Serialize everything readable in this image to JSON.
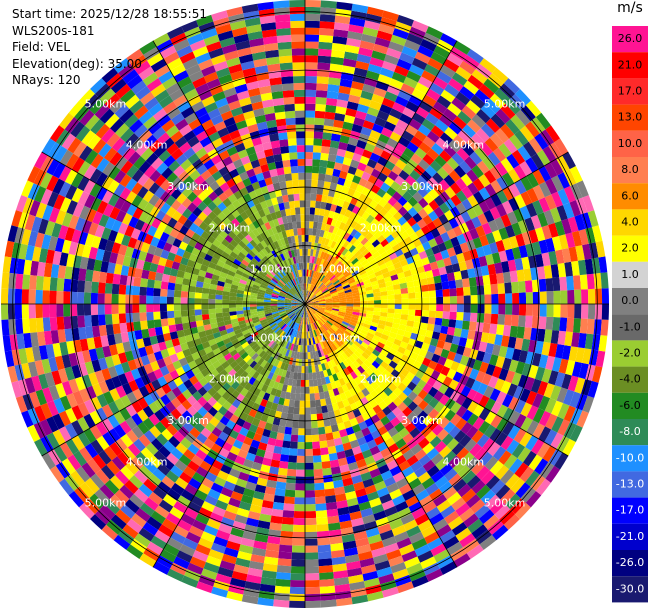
{
  "info": {
    "start_time": "Start time: 2025/12/28 18:55:51",
    "instrument": "WLS200s-181",
    "field": "Field: VEL",
    "elevation": "Elevation(deg): 35.00",
    "nrays": "NRays: 120"
  },
  "colorbar": {
    "unit": "m/s",
    "labels": [
      "26.0",
      "21.0",
      "17.0",
      "13.0",
      "10.0",
      "8.0",
      "6.0",
      "4.0",
      "2.0",
      "1.0",
      "0.0",
      "-1.0",
      "-2.0",
      "-4.0",
      "-6.0",
      "-8.0",
      "-10.0",
      "-13.0",
      "-17.0",
      "-21.0",
      "-26.0",
      "-30.0"
    ],
    "colors": [
      "#ff1493",
      "#ff0000",
      "#ff2a2a",
      "#ff4500",
      "#ff6347",
      "#ff7f50",
      "#ff8c00",
      "#ffd700",
      "#ffff00",
      "#d3d3d3",
      "#808080",
      "#696969",
      "#9acd32",
      "#6b8e23",
      "#228b22",
      "#2e8b57",
      "#1e90ff",
      "#4169e1",
      "#0000ff",
      "#0000cd",
      "#000080",
      "#191970"
    ]
  },
  "chart_data": {
    "type": "heatmap",
    "title": "",
    "field": "VEL",
    "units": "m/s",
    "nrays": 120,
    "elevation_deg": 35.0,
    "range_labels_km": [
      "1.00km",
      "2.00km",
      "3.00km",
      "4.00km",
      "5.00km"
    ],
    "range_rings_km": [
      1,
      2,
      3,
      4,
      5
    ],
    "max_range_km": 5.2,
    "value_range": [
      -30,
      26
    ],
    "pattern": "near-range: negative velocities (green/blue) toward west, positive (yellow/orange) toward east; beyond ~2 km noisy random values"
  },
  "palette": {
    "noise": [
      "#ff1493",
      "#ff0000",
      "#ff4500",
      "#ff7f50",
      "#ffd700",
      "#ffff00",
      "#808080",
      "#9acd32",
      "#228b22",
      "#2e8b57",
      "#1e90ff",
      "#4169e1",
      "#0000ff",
      "#000080",
      "#191970",
      "#ff6347",
      "#8b008b",
      "#ff69b4"
    ]
  }
}
